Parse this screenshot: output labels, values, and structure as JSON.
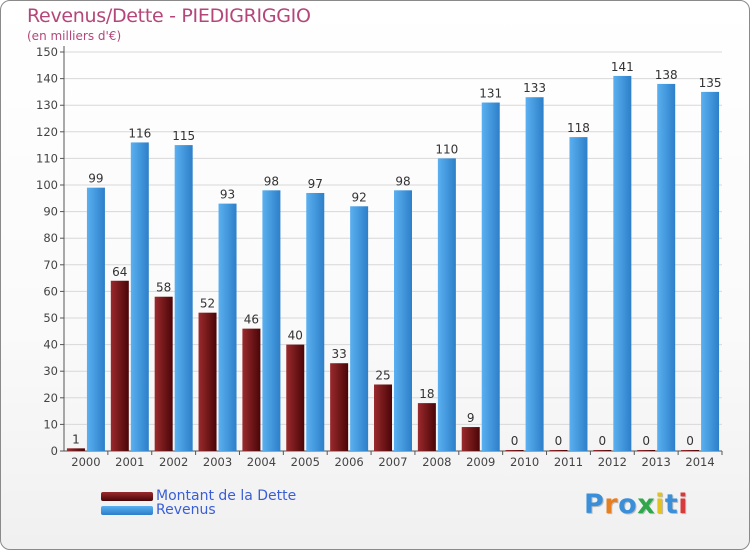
{
  "chart_data": {
    "type": "bar",
    "title": "Revenus/Dette - PIEDIGRIGGIO",
    "subtitle": "(en milliers d'€)",
    "categories": [
      "2000",
      "2001",
      "2002",
      "2003",
      "2004",
      "2005",
      "2006",
      "2007",
      "2008",
      "2009",
      "2010",
      "2011",
      "2012",
      "2013",
      "2014"
    ],
    "series": [
      {
        "name": "Montant de la Dette",
        "color": "#7a1518",
        "values": [
          1,
          64,
          58,
          52,
          46,
          40,
          33,
          25,
          18,
          9,
          0,
          0,
          0,
          0,
          0
        ]
      },
      {
        "name": "Revenus",
        "color": "#3d9be6",
        "values": [
          99,
          116,
          115,
          93,
          98,
          97,
          92,
          98,
          110,
          131,
          133,
          118,
          141,
          138,
          135
        ]
      }
    ],
    "ylim": [
      0,
      150
    ],
    "yticks": [
      0,
      10,
      20,
      30,
      40,
      50,
      60,
      70,
      80,
      90,
      100,
      110,
      120,
      130,
      140,
      150
    ],
    "grid": true,
    "legend_position": "bottom-left"
  },
  "logo": {
    "letters": [
      "P",
      "r",
      "o",
      "x",
      "i",
      "t",
      "i"
    ],
    "colors": [
      "#3a8fd8",
      "#e67e22",
      "#3a8fd8",
      "#2ea84a",
      "#e4c21e",
      "#3a8fd8",
      "#d63a3a"
    ]
  }
}
